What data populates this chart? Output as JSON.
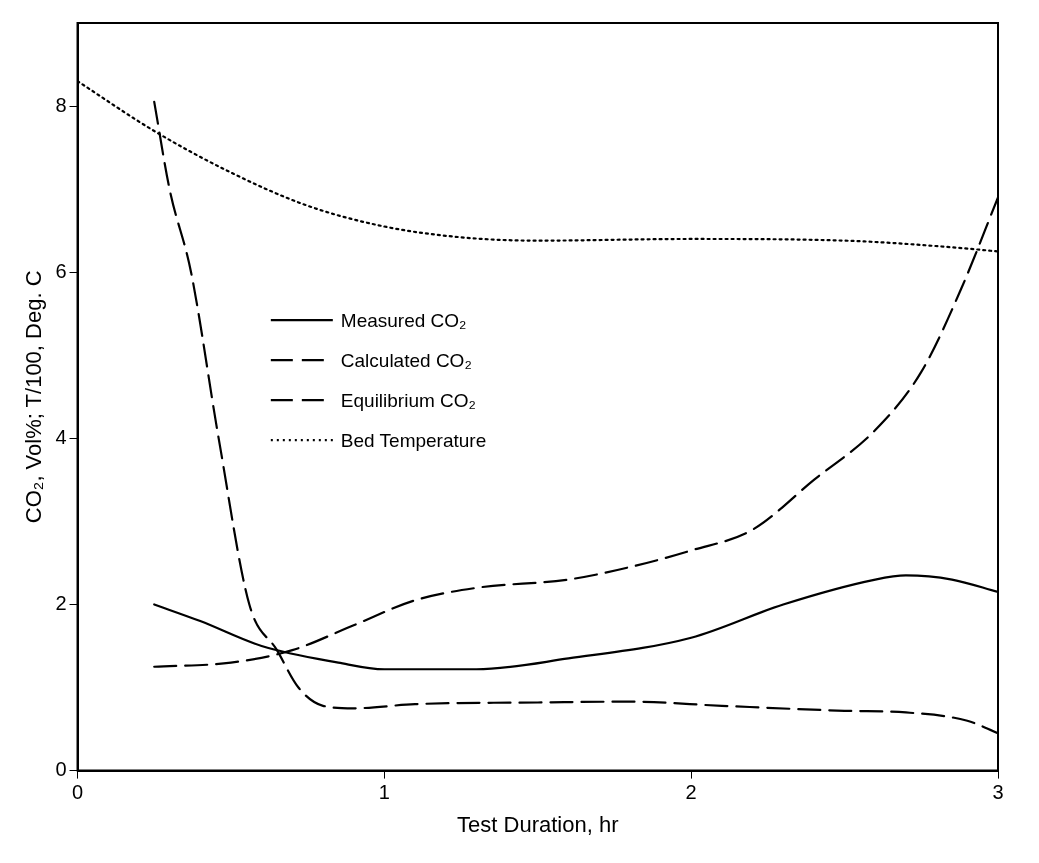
{
  "chart_data": {
    "type": "line",
    "xlabel": "Test Duration, hr",
    "ylabel": "CO₂, Vol%; T/100, Deg. C",
    "xlim": [
      0,
      3
    ],
    "ylim": [
      0,
      9
    ],
    "xticks": [
      0,
      1,
      2,
      3
    ],
    "yticks": [
      0,
      2,
      4,
      6,
      8
    ],
    "grid": false,
    "legend": "center left",
    "marker": "none",
    "series": [
      {
        "name": "Measured CO₂",
        "color": "#000000",
        "line_style": "solid",
        "x": [
          0.25,
          0.4,
          0.6,
          0.85,
          1.0,
          1.3,
          1.6,
          2.0,
          2.3,
          2.6,
          2.7,
          2.85,
          3.0
        ],
        "values": [
          2.0,
          1.8,
          1.5,
          1.3,
          1.22,
          1.22,
          1.35,
          1.6,
          2.0,
          2.3,
          2.35,
          2.3,
          2.15
        ]
      },
      {
        "name": "Calculated CO₂",
        "color": "#000000",
        "line_style": "dashed",
        "x": [
          0.25,
          0.5,
          0.7,
          0.9,
          1.1,
          1.3,
          1.6,
          1.8,
          2.0,
          2.2,
          2.4,
          2.6,
          2.75,
          2.88,
          3.0
        ],
        "values": [
          1.25,
          1.3,
          1.45,
          1.75,
          2.05,
          2.2,
          2.3,
          2.45,
          2.65,
          2.9,
          3.5,
          4.1,
          4.8,
          5.8,
          6.9
        ]
      },
      {
        "name": "Equilibrium CO₂",
        "color": "#000000",
        "line_style": "dashed",
        "x": [
          0.25,
          0.3,
          0.37,
          0.46,
          0.56,
          0.65,
          0.72,
          0.8,
          0.9,
          1.1,
          1.5,
          1.8,
          2.1,
          2.5,
          2.7,
          2.9,
          3.0
        ],
        "values": [
          8.05,
          7.0,
          6.0,
          4.0,
          2.0,
          1.45,
          1.0,
          0.78,
          0.75,
          0.8,
          0.82,
          0.83,
          0.78,
          0.72,
          0.7,
          0.6,
          0.45
        ]
      },
      {
        "name": "Bed Temperature",
        "color": "#000000",
        "line_style": "dotted",
        "x": [
          0,
          0.25,
          0.5,
          0.75,
          1.0,
          1.25,
          1.5,
          2.0,
          2.5,
          2.85,
          3.0
        ],
        "values": [
          8.3,
          7.7,
          7.2,
          6.8,
          6.55,
          6.42,
          6.38,
          6.4,
          6.38,
          6.3,
          6.25
        ]
      }
    ]
  }
}
